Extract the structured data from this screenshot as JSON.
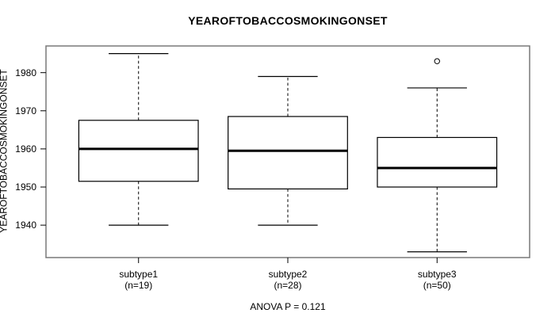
{
  "chart_data": {
    "type": "boxplot",
    "title": "YEAROFTOBACCOSMOKINGONSET",
    "ylabel": "YEAROFTOBACCOSMOKINGONSET",
    "annotation": "ANOVA P = 0.121",
    "ylim": [
      1931.5,
      1987
    ],
    "xlim": [
      0.38,
      3.62
    ],
    "yticks": [
      1980,
      1970,
      1960,
      1950,
      1940
    ],
    "box_half_width": 0.4,
    "cap_half_width": 0.2,
    "groups": [
      {
        "label": "subtype1",
        "n_label": "(n=19)",
        "position": 1,
        "lower_whisker": 1940,
        "q1": 1951.5,
        "median": 1960,
        "q3": 1967.5,
        "upper_whisker": 1985,
        "outliers": []
      },
      {
        "label": "subtype2",
        "n_label": "(n=28)",
        "position": 2,
        "lower_whisker": 1940,
        "q1": 1949.5,
        "median": 1959.5,
        "q3": 1968.5,
        "upper_whisker": 1979,
        "outliers": []
      },
      {
        "label": "subtype3",
        "n_label": "(n=50)",
        "position": 3,
        "lower_whisker": 1933,
        "q1": 1950,
        "median": 1955,
        "q3": 1963,
        "upper_whisker": 1976,
        "outliers": [
          1983
        ]
      }
    ],
    "legend": "off",
    "grid": "off",
    "colors": {
      "frame": "#787878",
      "box_stroke": "#000000",
      "median": "#000000",
      "text": "#000000",
      "background": "#ffffff"
    }
  }
}
